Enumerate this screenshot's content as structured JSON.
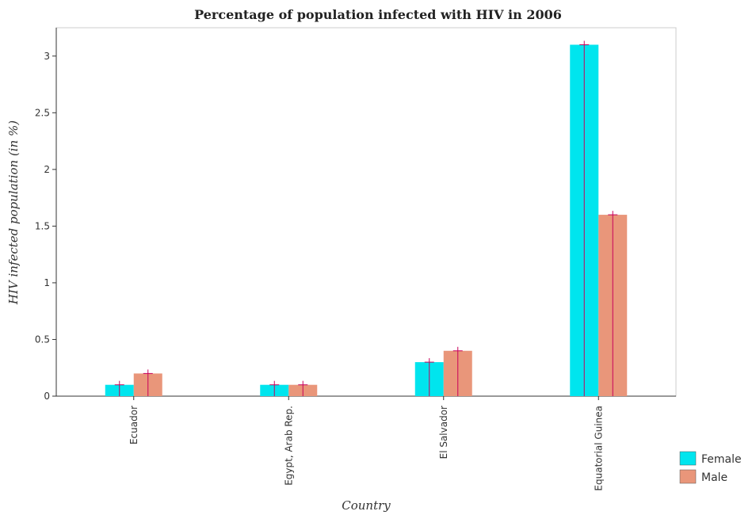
{
  "chart_data": {
    "type": "bar",
    "title": "Percentage of population infected with HIV in 2006",
    "xlabel": "Country",
    "ylabel": "HIV infected population (in %)",
    "categories": [
      "Ecuador",
      "Egypt, Arab Rep.",
      "El Salvador",
      "Equatorial Guinea"
    ],
    "series": [
      {
        "name": "Female",
        "color": "#00e5ee",
        "values": [
          0.1,
          0.1,
          0.3,
          3.1
        ]
      },
      {
        "name": "Male",
        "color": "#e9967a",
        "values": [
          0.2,
          0.1,
          0.4,
          1.6
        ]
      }
    ],
    "ylim": [
      0,
      3.25
    ],
    "yticks": [
      0,
      0.5,
      1,
      1.5,
      2,
      2.5,
      3
    ],
    "ytick_labels": [
      "0",
      "0.5",
      "1",
      "1.5",
      "2",
      "2.5",
      "3"
    ],
    "grid": false,
    "legend_position": "bottom-right"
  }
}
